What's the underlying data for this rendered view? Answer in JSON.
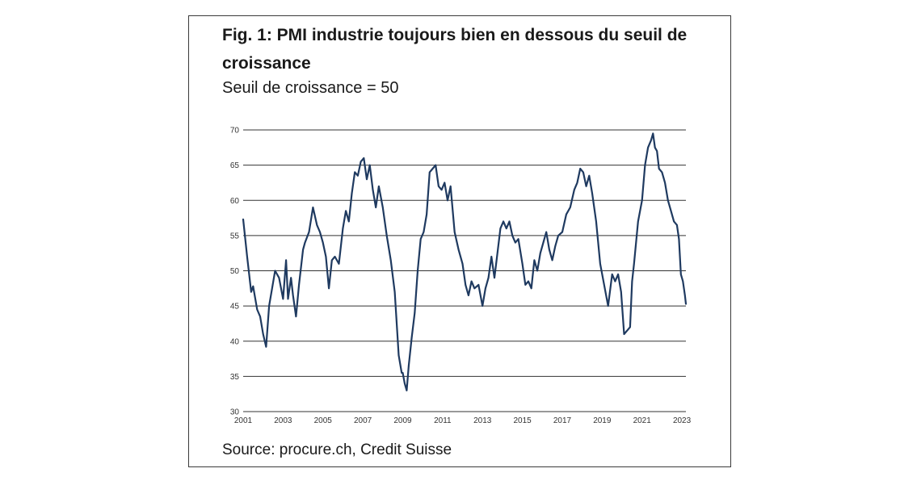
{
  "title": "Fig. 1: PMI industrie toujours bien en dessous du seuil de croissance",
  "subtitle": "Seuil de croissance = 50",
  "source": "Source: procure.ch, Credit Suisse",
  "colors": {
    "line": "#1f3a60",
    "grid": "#333333",
    "frame": "#3a3a3a"
  },
  "chart_data": {
    "type": "line",
    "title": "Fig. 1: PMI industrie toujours bien en dessous du seuil de croissance",
    "subtitle": "Seuil de croissance = 50",
    "xlabel": "",
    "ylabel": "",
    "xlim": [
      2001,
      2023.2
    ],
    "ylim": [
      30,
      70
    ],
    "grid": "horizontal",
    "y_ticks": [
      "30",
      "35",
      "40",
      "45",
      "50",
      "55",
      "60",
      "65",
      "70"
    ],
    "x_ticks": [
      "2001",
      "2003",
      "2005",
      "2007",
      "2009",
      "2011",
      "2013",
      "2015",
      "2017",
      "2019",
      "2021",
      "2023"
    ],
    "series": [
      {
        "name": "",
        "x": [
          2001.0,
          2001.2,
          2001.4,
          2001.5,
          2001.7,
          2001.85,
          2002.0,
          2002.15,
          2002.3,
          2002.45,
          2002.6,
          2002.8,
          2003.0,
          2003.15,
          2003.25,
          2003.4,
          2003.5,
          2003.65,
          2003.8,
          2004.0,
          2004.1,
          2004.3,
          2004.5,
          2004.7,
          2004.85,
          2005.0,
          2005.15,
          2005.3,
          2005.45,
          2005.6,
          2005.8,
          2006.0,
          2006.15,
          2006.3,
          2006.45,
          2006.6,
          2006.75,
          2006.9,
          2007.05,
          2007.2,
          2007.35,
          2007.5,
          2007.65,
          2007.8,
          2008.0,
          2008.2,
          2008.4,
          2008.6,
          2008.8,
          2008.95,
          2009.0,
          2009.1,
          2009.2,
          2009.3,
          2009.45,
          2009.6,
          2009.75,
          2009.9,
          2010.05,
          2010.2,
          2010.35,
          2010.5,
          2010.65,
          2010.8,
          2010.95,
          2011.1,
          2011.25,
          2011.4,
          2011.6,
          2011.8,
          2012.0,
          2012.15,
          2012.3,
          2012.45,
          2012.6,
          2012.8,
          2013.0,
          2013.15,
          2013.3,
          2013.45,
          2013.6,
          2013.75,
          2013.9,
          2014.05,
          2014.2,
          2014.35,
          2014.5,
          2014.65,
          2014.8,
          2015.0,
          2015.15,
          2015.3,
          2015.45,
          2015.6,
          2015.75,
          2015.9,
          2016.05,
          2016.2,
          2016.35,
          2016.5,
          2016.65,
          2016.8,
          2017.0,
          2017.2,
          2017.4,
          2017.6,
          2017.75,
          2017.9,
          2018.05,
          2018.2,
          2018.35,
          2018.5,
          2018.7,
          2018.9,
          2019.1,
          2019.3,
          2019.5,
          2019.65,
          2019.8,
          2019.95,
          2020.1,
          2020.25,
          2020.4,
          2020.5,
          2020.6,
          2020.8,
          2021.0,
          2021.15,
          2021.3,
          2021.45,
          2021.55,
          2021.65,
          2021.75,
          2021.85,
          2022.0,
          2022.15,
          2022.3,
          2022.45,
          2022.6,
          2022.75,
          2022.85,
          2022.95,
          2023.05,
          2023.15,
          2023.2
        ],
        "values": [
          57.3,
          52.0,
          47.0,
          47.8,
          44.5,
          43.5,
          41.0,
          39.2,
          45.0,
          47.5,
          50.0,
          49.0,
          46.0,
          51.5,
          46.0,
          49.0,
          46.5,
          43.5,
          48.0,
          53.0,
          54.0,
          55.5,
          59.0,
          56.5,
          55.5,
          54.0,
          52.0,
          47.5,
          51.5,
          52.0,
          51.0,
          56.0,
          58.5,
          57.0,
          61.0,
          64.0,
          63.5,
          65.5,
          66.0,
          63.0,
          65.0,
          61.5,
          59.0,
          62.0,
          59.0,
          55.0,
          51.5,
          47.0,
          38.0,
          35.5,
          35.5,
          34.0,
          33.0,
          36.5,
          40.5,
          44.0,
          50.0,
          54.5,
          55.5,
          58.0,
          64.0,
          64.5,
          65.0,
          62.0,
          61.5,
          62.5,
          60.0,
          62.0,
          55.5,
          53.0,
          51.0,
          48.0,
          46.5,
          48.5,
          47.5,
          48.0,
          45.0,
          47.5,
          49.0,
          52.0,
          49.0,
          52.5,
          56.0,
          57.0,
          56.0,
          57.0,
          55.0,
          54.0,
          54.5,
          51.0,
          48.0,
          48.5,
          47.5,
          51.5,
          50.0,
          52.5,
          54.0,
          55.5,
          53.0,
          51.5,
          53.5,
          55.0,
          55.5,
          58.0,
          59.0,
          61.5,
          62.5,
          64.5,
          64.0,
          62.0,
          63.5,
          61.0,
          57.0,
          51.0,
          48.0,
          45.0,
          49.5,
          48.5,
          49.5,
          47.0,
          41.0,
          41.5,
          42.0,
          48.5,
          51.0,
          57.0,
          60.0,
          65.0,
          67.5,
          68.5,
          69.5,
          67.5,
          67.0,
          64.5,
          64.0,
          62.5,
          60.0,
          58.5,
          57.0,
          56.5,
          54.5,
          49.5,
          48.5,
          46.5,
          45.3
        ]
      }
    ]
  }
}
